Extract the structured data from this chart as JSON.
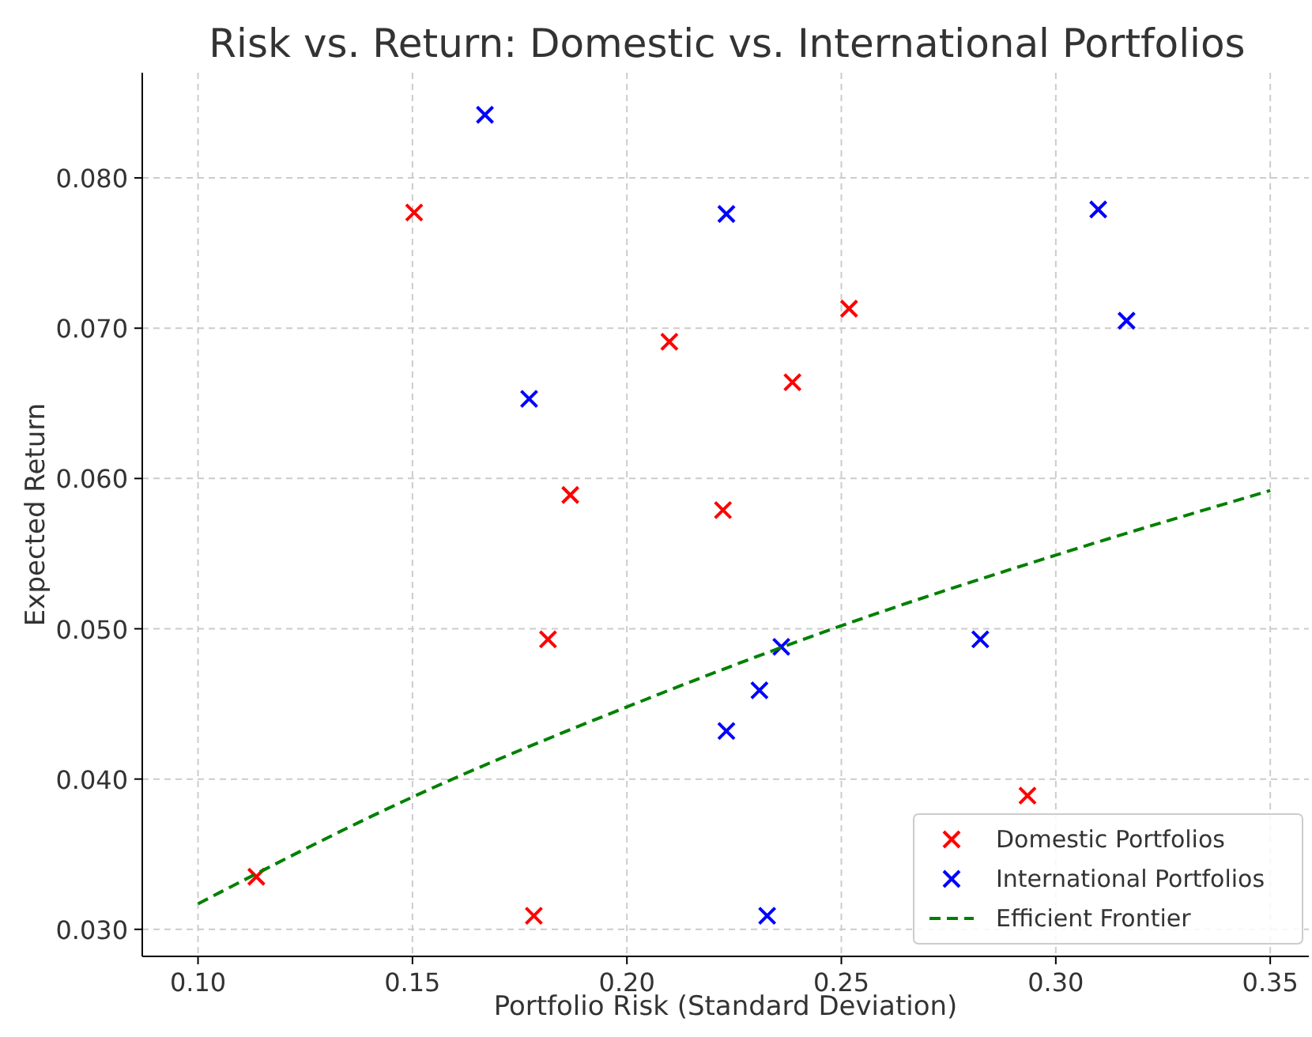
{
  "chart_data": {
    "type": "scatter",
    "title": "Risk vs. Return: Domestic vs. International Portfolios",
    "xlabel": "Portfolio Risk (Standard Deviation)",
    "ylabel": "Expected Return",
    "xlim": [
      0.087,
      0.359
    ],
    "ylim": [
      0.0282,
      0.087
    ],
    "xticks": [
      {
        "value": 0.1,
        "label": "0.10"
      },
      {
        "value": 0.15,
        "label": "0.15"
      },
      {
        "value": 0.2,
        "label": "0.20"
      },
      {
        "value": 0.25,
        "label": "0.25"
      },
      {
        "value": 0.3,
        "label": "0.30"
      },
      {
        "value": 0.35,
        "label": "0.35"
      }
    ],
    "yticks": [
      {
        "value": 0.03,
        "label": "0.030"
      },
      {
        "value": 0.04,
        "label": "0.040"
      },
      {
        "value": 0.05,
        "label": "0.050"
      },
      {
        "value": 0.06,
        "label": "0.060"
      },
      {
        "value": 0.07,
        "label": "0.070"
      },
      {
        "value": 0.08,
        "label": "0.080"
      }
    ],
    "grid": true,
    "legend": "bottom right",
    "marker": "cross",
    "series": [
      {
        "name": "Domestic Portfolios",
        "color": "#ff0000",
        "x": [
          0.1504,
          0.2099,
          0.2518,
          0.2386,
          0.1868,
          0.2224,
          0.1816,
          0.2934,
          0.1136,
          0.1783
        ],
        "values": [
          0.0777,
          0.0691,
          0.0713,
          0.0664,
          0.0589,
          0.0579,
          0.0493,
          0.0389,
          0.0335,
          0.0309
        ]
      },
      {
        "name": "International Portfolios",
        "color": "#0000ff",
        "x": [
          0.1669,
          0.2232,
          0.3099,
          0.3165,
          0.1772,
          0.236,
          0.2824,
          0.2309,
          0.2232,
          0.2327
        ],
        "values": [
          0.0842,
          0.0776,
          0.0779,
          0.0705,
          0.0653,
          0.0488,
          0.0493,
          0.0459,
          0.0432,
          0.0309
        ]
      },
      {
        "name": "Efficient Frontier",
        "type": "line",
        "color": "#008000",
        "line_style": "dashed",
        "marker": "none",
        "x": [
          0.1,
          0.15,
          0.2,
          0.25,
          0.3,
          0.35
        ],
        "values": [
          0.0317,
          0.0388,
          0.0448,
          0.0502,
          0.0549,
          0.0592
        ]
      }
    ]
  }
}
